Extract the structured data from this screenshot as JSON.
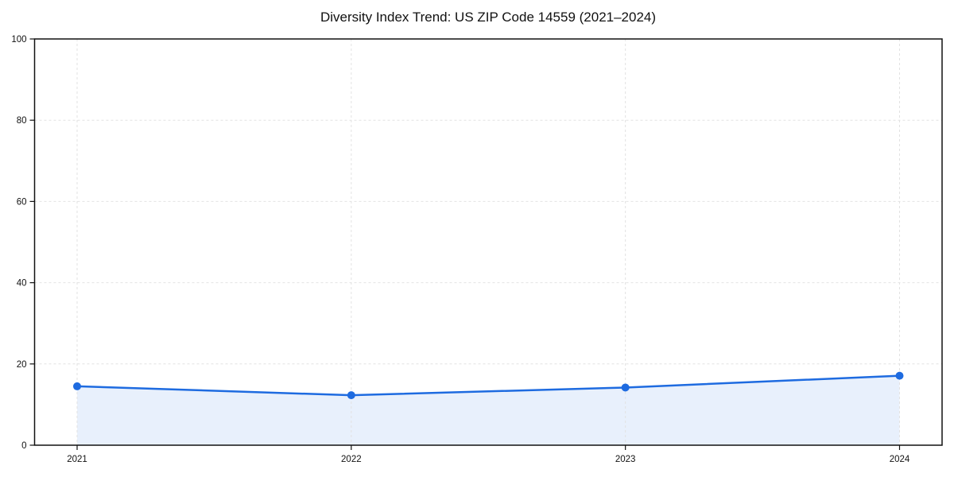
{
  "chart_data": {
    "type": "line",
    "title": "Diversity Index Trend: US ZIP Code 14559 (2021–2024)",
    "categories": [
      "2021",
      "2022",
      "2023",
      "2024"
    ],
    "values": [
      14.5,
      12.3,
      14.2,
      17.1
    ],
    "xlabel": "",
    "ylabel": "",
    "ylim": [
      0,
      100
    ],
    "yticks": [
      0,
      20,
      40,
      60,
      80,
      100
    ],
    "grid": true,
    "grid_style": "dashed",
    "legend": "none",
    "area_fill": true,
    "colors": {
      "line": "#1e6be0",
      "marker": "#1e6be0",
      "area": "#e8f0fc",
      "grid": "#e2e2e2",
      "spine": "#111111",
      "tick_label": "#111111",
      "background": "#ffffff"
    }
  }
}
